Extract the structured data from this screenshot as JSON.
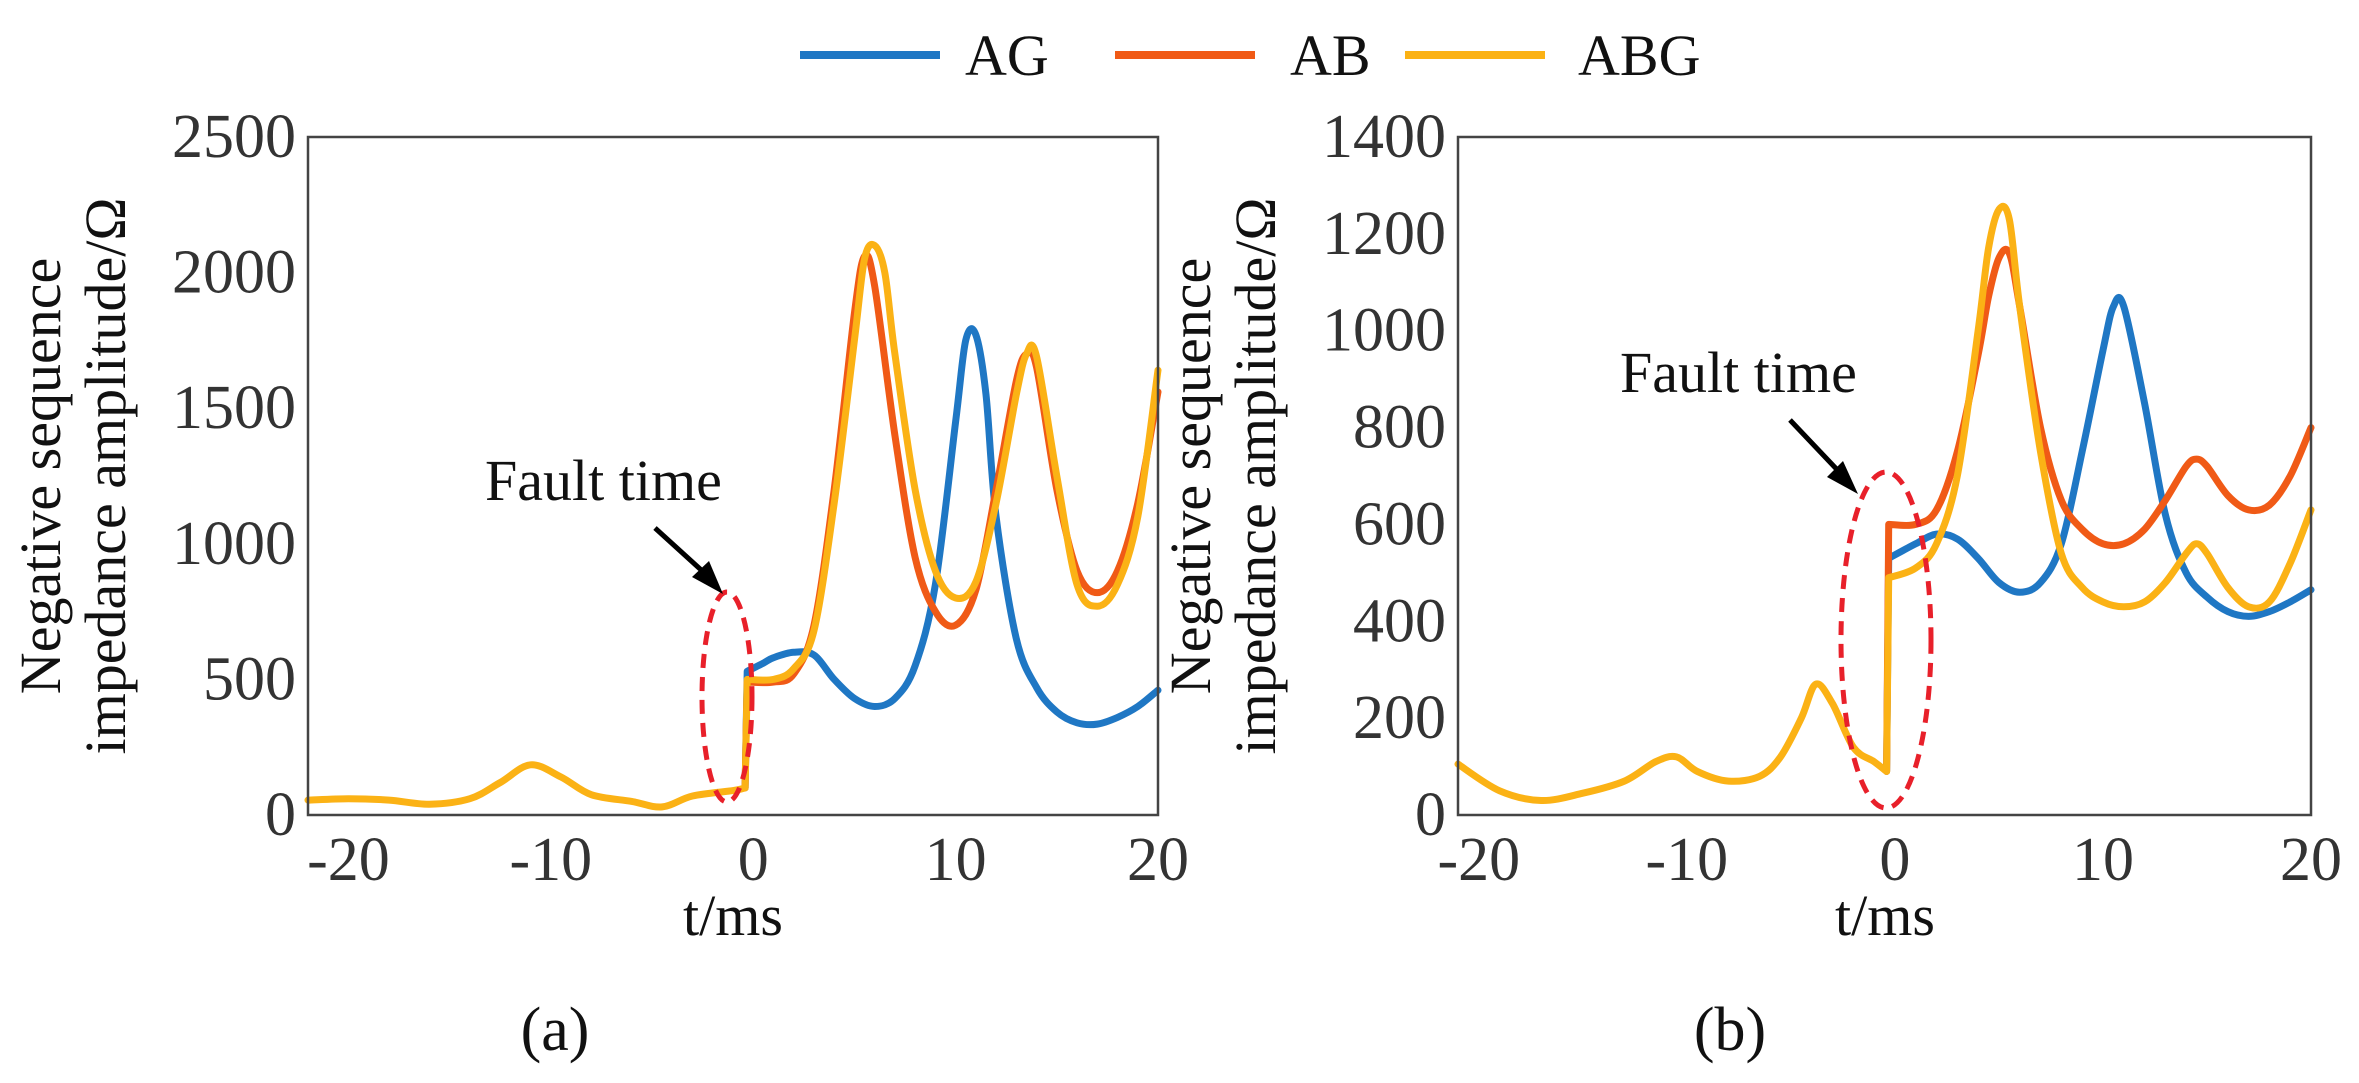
{
  "legend": [
    {
      "name": "AG",
      "color": "#1f77c4"
    },
    {
      "name": "AB",
      "color": "#f05a16"
    },
    {
      "name": "ABG",
      "color": "#fbb215"
    }
  ],
  "chart_data": [
    {
      "type": "line",
      "panel_label": "(a)",
      "xlabel": "t/ms",
      "ylabel_lines": [
        "Negative sequence",
        "impedance amplitude/Ω"
      ],
      "xlim": [
        -22,
        20
      ],
      "ylim": [
        0,
        2500
      ],
      "xticks": [
        "-20",
        "-10",
        "0",
        "10",
        "20"
      ],
      "xtick_values": [
        -20,
        -10,
        0,
        10,
        20
      ],
      "yticks": [
        "0",
        "500",
        "1000",
        "1500",
        "2000",
        "2500"
      ],
      "ytick_values": [
        0,
        500,
        1000,
        1500,
        2000,
        2500
      ],
      "grid": false,
      "annotation": {
        "text": "Fault time",
        "x": -0.3,
        "y": 400
      },
      "pre_fault": {
        "x": [
          -22,
          -20,
          -18,
          -16,
          -14,
          -12.5,
          -11,
          -9.5,
          -8,
          -6,
          -4.5,
          -3,
          -1,
          -0.4
        ],
        "y": [
          55,
          60,
          55,
          40,
          60,
          120,
          185,
          140,
          75,
          50,
          30,
          70,
          90,
          100
        ]
      },
      "series": [
        {
          "name": "AG",
          "color": "#1f77c4",
          "x": [
            -0.4,
            -0.3,
            0.5,
            1,
            2,
            3,
            4,
            5,
            6,
            7,
            8,
            9,
            10,
            10.5,
            11,
            11.5,
            12,
            13,
            14,
            15,
            16,
            17,
            18,
            19,
            20
          ],
          "y": [
            100,
            530,
            560,
            580,
            600,
            590,
            500,
            430,
            400,
            430,
            550,
            850,
            1450,
            1750,
            1770,
            1550,
            1100,
            650,
            470,
            380,
            340,
            335,
            360,
            400,
            460
          ]
        },
        {
          "name": "AB",
          "color": "#f05a16",
          "x": [
            -0.4,
            -0.3,
            1,
            2,
            3,
            4,
            5,
            5.5,
            6,
            7,
            8,
            9,
            10,
            11,
            12,
            13,
            13.5,
            14,
            15,
            16,
            17,
            18,
            19,
            20
          ],
          "y": [
            100,
            490,
            490,
            520,
            700,
            1200,
            1850,
            2060,
            1950,
            1400,
            950,
            750,
            700,
            830,
            1200,
            1600,
            1700,
            1650,
            1200,
            900,
            820,
            900,
            1150,
            1560
          ]
        },
        {
          "name": "ABG",
          "color": "#fbb215",
          "x": [
            -0.4,
            -0.3,
            1,
            2,
            3,
            4,
            5,
            5.5,
            6,
            6.5,
            7,
            8,
            9,
            10,
            11,
            12,
            13,
            13.5,
            14,
            15,
            16,
            17,
            18,
            19,
            20
          ],
          "y": [
            100,
            500,
            500,
            540,
            680,
            1150,
            1750,
            2050,
            2100,
            2000,
            1700,
            1200,
            900,
            800,
            860,
            1150,
            1550,
            1700,
            1690,
            1250,
            850,
            770,
            850,
            1100,
            1640
          ]
        }
      ]
    },
    {
      "type": "line",
      "panel_label": "(b)",
      "xlabel": "t/ms",
      "ylabel_lines": [
        "Negative sequence",
        "impedance amplitude/Ω"
      ],
      "xlim": [
        -21,
        20
      ],
      "ylim": [
        0,
        1400
      ],
      "xticks": [
        "-20",
        "-10",
        "0",
        "10",
        "20"
      ],
      "xtick_values": [
        -20,
        -10,
        0,
        10,
        20
      ],
      "yticks": [
        "0",
        "200",
        "400",
        "600",
        "800",
        "1000",
        "1200",
        "1400"
      ],
      "ytick_values": [
        0,
        200,
        400,
        600,
        800,
        1000,
        1200,
        1400
      ],
      "grid": false,
      "annotation": {
        "text": "Fault time",
        "x": -0.4,
        "y": 355
      },
      "pre_fault": {
        "x": [
          -21,
          -19,
          -17,
          -15,
          -13,
          -11.5,
          -10.5,
          -9.5,
          -8,
          -6.5,
          -5.5,
          -4.5,
          -3.8,
          -3,
          -2,
          -1,
          -0.4
        ],
        "y": [
          105,
          50,
          30,
          45,
          70,
          110,
          120,
          90,
          70,
          80,
          120,
          200,
          270,
          230,
          140,
          110,
          90
        ]
      },
      "series": [
        {
          "name": "AG",
          "color": "#1f77c4",
          "x": [
            -0.4,
            -0.3,
            1,
            2,
            3,
            4,
            5,
            6,
            7,
            8,
            9,
            10,
            10.5,
            11,
            12,
            13,
            14,
            15,
            16,
            17,
            18,
            19,
            20
          ],
          "y": [
            90,
            530,
            560,
            580,
            570,
            530,
            480,
            460,
            480,
            560,
            750,
            960,
            1050,
            1050,
            850,
            620,
            500,
            450,
            420,
            410,
            420,
            440,
            465
          ]
        },
        {
          "name": "AB",
          "color": "#f05a16",
          "x": [
            -0.4,
            -0.3,
            1,
            2,
            3,
            4,
            4.5,
            5,
            5.5,
            6,
            7,
            8,
            9,
            10,
            11,
            12,
            13,
            14,
            14.5,
            15,
            16,
            17,
            18,
            19,
            20
          ],
          "y": [
            90,
            600,
            600,
            630,
            750,
            950,
            1070,
            1150,
            1160,
            1050,
            800,
            650,
            590,
            560,
            560,
            590,
            650,
            720,
            735,
            720,
            660,
            630,
            640,
            700,
            800
          ]
        },
        {
          "name": "ABG",
          "color": "#fbb215",
          "x": [
            -0.4,
            -0.3,
            1,
            2,
            3,
            4,
            4.5,
            5,
            5.5,
            6,
            7,
            8,
            9,
            10,
            11,
            12,
            13,
            14,
            14.5,
            15,
            16,
            17,
            18,
            19,
            20
          ],
          "y": [
            90,
            490,
            510,
            560,
            700,
            1000,
            1170,
            1250,
            1230,
            1050,
            750,
            540,
            470,
            440,
            430,
            440,
            480,
            540,
            560,
            540,
            470,
            430,
            440,
            520,
            630
          ]
        }
      ]
    }
  ]
}
